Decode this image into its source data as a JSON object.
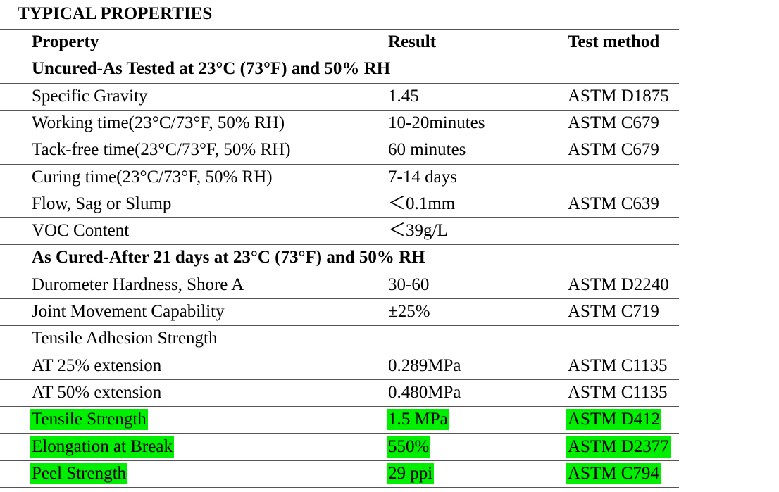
{
  "title": "TYPICAL PROPERTIES",
  "table": {
    "header": [
      "Property",
      "Result",
      "Test method"
    ],
    "highlight_color": "#00ee00",
    "rows": [
      {
        "section": "Uncured-As Tested at 23°C (73°F) and 50% RH"
      },
      {
        "cells": [
          "Specific Gravity",
          "1.45",
          "ASTM D1875"
        ]
      },
      {
        "cells": [
          "Working time(23°C/73°F, 50% RH)",
          "10-20minutes",
          "ASTM C679"
        ]
      },
      {
        "cells": [
          "Tack-free time(23°C/73°F, 50% RH)",
          "60 minutes",
          "ASTM C679"
        ]
      },
      {
        "cells": [
          "Curing time(23°C/73°F, 50% RH)",
          "7-14 days"
        ]
      },
      {
        "cells": [
          "Flow, Sag or Slump",
          "＜0.1mm",
          "ASTM C639"
        ]
      },
      {
        "cells": [
          "VOC Content",
          "＜39g/L"
        ]
      },
      {
        "section": "As Cured-After 21 days at 23°C (73°F) and 50% RH"
      },
      {
        "cells": [
          "Durometer Hardness, Shore A",
          "30-60",
          "ASTM D2240"
        ]
      },
      {
        "cells": [
          "Joint Movement Capability",
          "±25%",
          "ASTM C719"
        ]
      },
      {
        "cells": [
          "Tensile Adhesion Strength"
        ]
      },
      {
        "cells": [
          "AT 25% extension",
          "0.289MPa",
          "ASTM C1135"
        ]
      },
      {
        "cells": [
          "AT 50% extension",
          "0.480MPa",
          "ASTM C1135"
        ]
      },
      {
        "cells": [
          "Tensile Strength",
          "1.5 MPa",
          "ASTM D412"
        ],
        "highlight": true
      },
      {
        "cells": [
          "Elongation at Break",
          "550%",
          "ASTM D2377"
        ],
        "highlight": true
      },
      {
        "cells": [
          "Peel Strength",
          "29 ppi",
          "ASTM C794"
        ],
        "highlight": true
      }
    ]
  }
}
